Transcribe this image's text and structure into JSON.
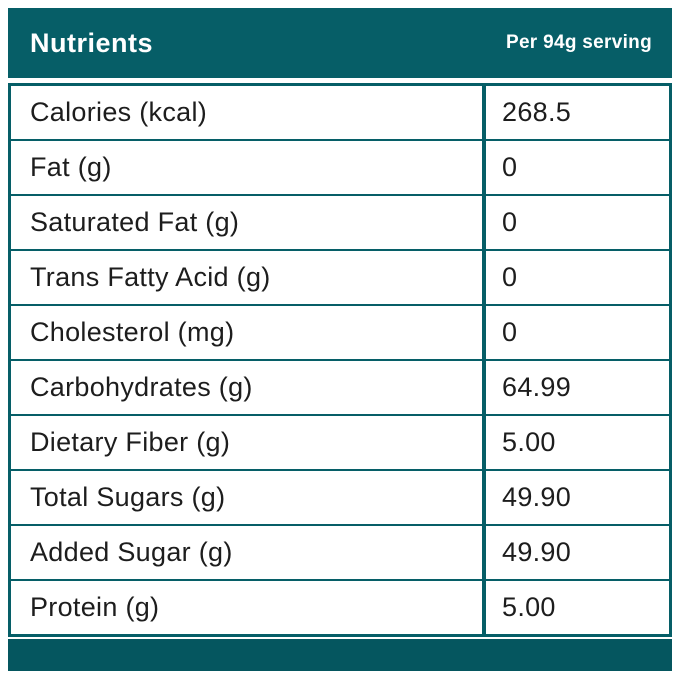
{
  "header": {
    "title": "Nutrients",
    "serving": "Per 94g serving"
  },
  "table": {
    "rows": [
      {
        "label": "Calories (kcal)",
        "value": "268.5"
      },
      {
        "label": "Fat (g)",
        "value": "0"
      },
      {
        "label": "Saturated Fat (g)",
        "value": "0"
      },
      {
        "label": "Trans Fatty Acid (g)",
        "value": "0"
      },
      {
        "label": "Cholesterol (mg)",
        "value": "0"
      },
      {
        "label": "Carbohydrates (g)",
        "value": "64.99"
      },
      {
        "label": "Dietary Fiber (g)",
        "value": "5.00"
      },
      {
        "label": "Total Sugars (g)",
        "value": "49.90"
      },
      {
        "label": "Added Sugar (g)",
        "value": "49.90"
      },
      {
        "label": "Protein (g)",
        "value": "5.00"
      }
    ]
  },
  "colors": {
    "teal_header": "#065e67",
    "teal_footer": "#05565f",
    "row_text": "#1d1d1d",
    "background": "#ffffff"
  }
}
